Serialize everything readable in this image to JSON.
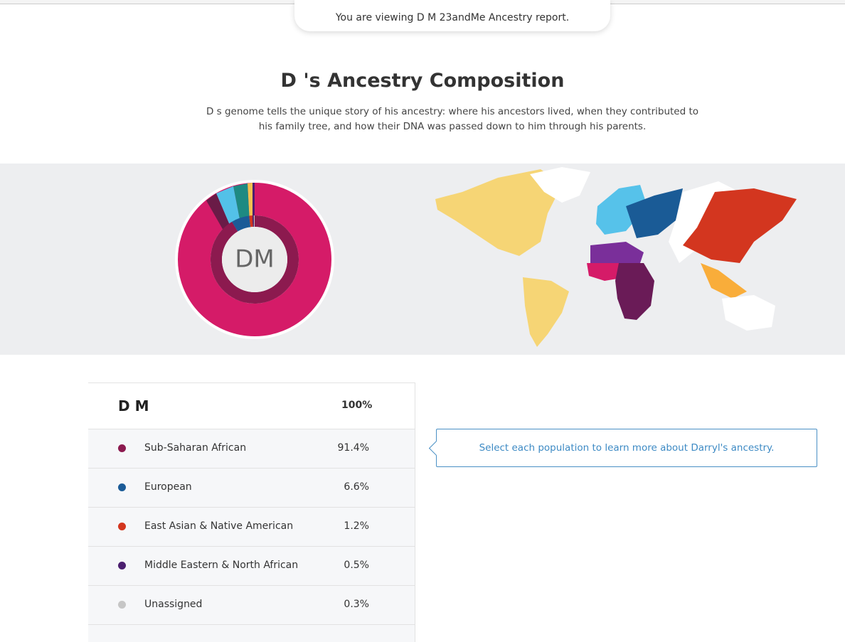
{
  "banner": "You are viewing D      M      23andMe Ancestry report.",
  "header": {
    "title": "D      's Ancestry Composition",
    "description": "D      s genome tells the unique story of his ancestry: where his ancestors lived, when they contributed to his family tree, and how their DNA was passed down to him through his parents."
  },
  "donut": {
    "initials": "DM"
  },
  "table": {
    "name": "D      M",
    "total_label": "100%",
    "rows": [
      {
        "name": "Sub-Saharan African",
        "value": 91.4,
        "value_label": "91.4%",
        "color": "#8c1a4f"
      },
      {
        "name": "European",
        "value": 6.6,
        "value_label": "6.6%",
        "color": "#1b5b97"
      },
      {
        "name": "East Asian & Native American",
        "value": 1.2,
        "value_label": "1.2%",
        "color": "#d3361f"
      },
      {
        "name": "Middle Eastern & North African",
        "value": 0.5,
        "value_label": "0.5%",
        "color": "#4b1f6f"
      },
      {
        "name": "Unassigned",
        "value": 0.3,
        "value_label": "0.3%",
        "color": "#c6c6c6"
      }
    ]
  },
  "callout": "Select each population to learn more about Darryl's ancestry."
}
